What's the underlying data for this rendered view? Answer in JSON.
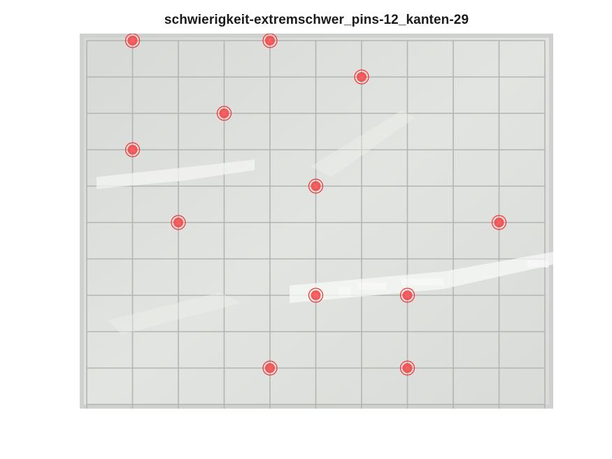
{
  "figure": {
    "title": "schwierigkeit-extremschwer_pins-12_kanten-29"
  },
  "board": {
    "background_color": "#dcdedb",
    "gridline_color": "#b3b5b2",
    "pin_color": "#ff2b2b"
  },
  "pins": [
    {
      "id": "pin-1",
      "col": 1,
      "row": 0
    },
    {
      "id": "pin-2",
      "col": 4,
      "row": 0
    },
    {
      "id": "pin-3",
      "col": 6,
      "row": 1
    },
    {
      "id": "pin-4",
      "col": 3,
      "row": 2
    },
    {
      "id": "pin-5",
      "col": 1,
      "row": 3
    },
    {
      "id": "pin-6",
      "col": 5,
      "row": 4
    },
    {
      "id": "pin-7",
      "col": 2,
      "row": 5
    },
    {
      "id": "pin-8",
      "col": 9,
      "row": 5
    },
    {
      "id": "pin-9",
      "col": 5,
      "row": 7
    },
    {
      "id": "pin-10",
      "col": 7,
      "row": 7
    },
    {
      "id": "pin-11",
      "col": 4,
      "row": 9
    },
    {
      "id": "pin-12",
      "col": 7,
      "row": 9
    }
  ]
}
